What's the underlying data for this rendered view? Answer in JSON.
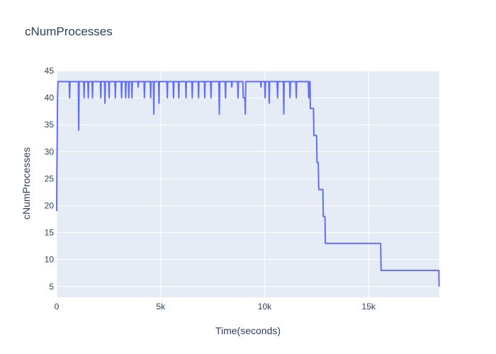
{
  "chart_data": {
    "type": "line",
    "title": "cNumProcesses",
    "xlabel": "Time(seconds)",
    "ylabel": "cNumProcesses",
    "xlim": [
      0,
      18400
    ],
    "ylim": [
      3,
      45
    ],
    "grid": true,
    "x_ticks": [
      0,
      5000,
      10000,
      15000
    ],
    "x_tick_labels": [
      "0",
      "5k",
      "10k",
      "15k"
    ],
    "y_ticks": [
      5,
      10,
      15,
      20,
      25,
      30,
      35,
      40,
      45
    ],
    "y_tick_labels": [
      "5",
      "10",
      "15",
      "20",
      "25",
      "30",
      "35",
      "40",
      "45"
    ],
    "series": [
      {
        "color": "#636efa",
        "points": [
          [
            0,
            19
          ],
          [
            10,
            27
          ],
          [
            25,
            32
          ],
          [
            40,
            40
          ],
          [
            60,
            43
          ],
          [
            600,
            43
          ],
          [
            620,
            40
          ],
          [
            640,
            43
          ],
          [
            1040,
            43
          ],
          [
            1060,
            34
          ],
          [
            1080,
            43
          ],
          [
            1300,
            43
          ],
          [
            1320,
            40
          ],
          [
            1340,
            43
          ],
          [
            1500,
            43
          ],
          [
            1520,
            40
          ],
          [
            1540,
            43
          ],
          [
            1700,
            43
          ],
          [
            1720,
            40
          ],
          [
            1740,
            43
          ],
          [
            2100,
            43
          ],
          [
            2120,
            40
          ],
          [
            2140,
            43
          ],
          [
            2300,
            43
          ],
          [
            2320,
            39
          ],
          [
            2340,
            43
          ],
          [
            2500,
            43
          ],
          [
            2520,
            40
          ],
          [
            2540,
            43
          ],
          [
            2800,
            43
          ],
          [
            2820,
            40
          ],
          [
            2840,
            43
          ],
          [
            3100,
            43
          ],
          [
            3120,
            40
          ],
          [
            3140,
            43
          ],
          [
            3300,
            43
          ],
          [
            3320,
            40
          ],
          [
            3340,
            43
          ],
          [
            3450,
            43
          ],
          [
            3470,
            40
          ],
          [
            3490,
            43
          ],
          [
            3600,
            43
          ],
          [
            3620,
            40
          ],
          [
            3640,
            43
          ],
          [
            3900,
            43
          ],
          [
            3920,
            42
          ],
          [
            3940,
            43
          ],
          [
            4200,
            43
          ],
          [
            4220,
            40
          ],
          [
            4240,
            43
          ],
          [
            4500,
            43
          ],
          [
            4520,
            40
          ],
          [
            4540,
            43
          ],
          [
            4650,
            43
          ],
          [
            4670,
            37
          ],
          [
            4690,
            43
          ],
          [
            4900,
            43
          ],
          [
            4920,
            39
          ],
          [
            4940,
            43
          ],
          [
            5300,
            43
          ],
          [
            5320,
            40
          ],
          [
            5340,
            43
          ],
          [
            5600,
            43
          ],
          [
            5620,
            40
          ],
          [
            5640,
            43
          ],
          [
            5850,
            43
          ],
          [
            5870,
            40
          ],
          [
            5890,
            43
          ],
          [
            6200,
            43
          ],
          [
            6220,
            40
          ],
          [
            6240,
            43
          ],
          [
            6500,
            43
          ],
          [
            6520,
            40
          ],
          [
            6540,
            43
          ],
          [
            6800,
            43
          ],
          [
            6820,
            40
          ],
          [
            6840,
            43
          ],
          [
            7100,
            43
          ],
          [
            7120,
            40
          ],
          [
            7140,
            43
          ],
          [
            7400,
            43
          ],
          [
            7420,
            40
          ],
          [
            7440,
            43
          ],
          [
            7800,
            43
          ],
          [
            7820,
            37
          ],
          [
            7840,
            43
          ],
          [
            8100,
            43
          ],
          [
            8120,
            40
          ],
          [
            8140,
            43
          ],
          [
            8400,
            43
          ],
          [
            8420,
            42
          ],
          [
            8440,
            43
          ],
          [
            8700,
            43
          ],
          [
            8720,
            40
          ],
          [
            8740,
            43
          ],
          [
            8950,
            43
          ],
          [
            8970,
            40
          ],
          [
            9050,
            40
          ],
          [
            9070,
            37
          ],
          [
            9090,
            43
          ],
          [
            9800,
            43
          ],
          [
            9820,
            42
          ],
          [
            9840,
            43
          ],
          [
            10000,
            43
          ],
          [
            10020,
            40
          ],
          [
            10040,
            43
          ],
          [
            10200,
            43
          ],
          [
            10220,
            39
          ],
          [
            10240,
            43
          ],
          [
            10600,
            43
          ],
          [
            10620,
            40
          ],
          [
            10640,
            43
          ],
          [
            10900,
            43
          ],
          [
            10920,
            37
          ],
          [
            10940,
            43
          ],
          [
            11200,
            43
          ],
          [
            11220,
            40
          ],
          [
            11240,
            43
          ],
          [
            11500,
            43
          ],
          [
            11520,
            40
          ],
          [
            11540,
            43
          ],
          [
            12100,
            43
          ],
          [
            12120,
            40
          ],
          [
            12140,
            43
          ],
          [
            12180,
            43
          ],
          [
            12200,
            38
          ],
          [
            12350,
            38
          ],
          [
            12370,
            33
          ],
          [
            12500,
            33
          ],
          [
            12520,
            28
          ],
          [
            12580,
            28
          ],
          [
            12600,
            23
          ],
          [
            12800,
            23
          ],
          [
            12820,
            18
          ],
          [
            12900,
            18
          ],
          [
            12920,
            13
          ],
          [
            15580,
            13
          ],
          [
            15600,
            8
          ],
          [
            18380,
            8
          ],
          [
            18390,
            5
          ]
        ]
      }
    ]
  }
}
